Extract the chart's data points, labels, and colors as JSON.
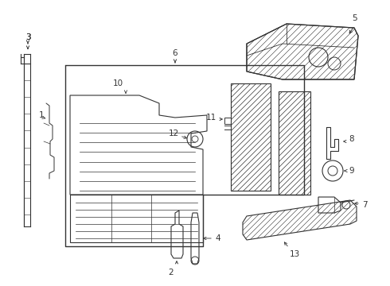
{
  "bg_color": "#ffffff",
  "line_color": "#333333",
  "label_color": "#111111",
  "fig_w": 4.9,
  "fig_h": 3.6,
  "dpi": 100
}
